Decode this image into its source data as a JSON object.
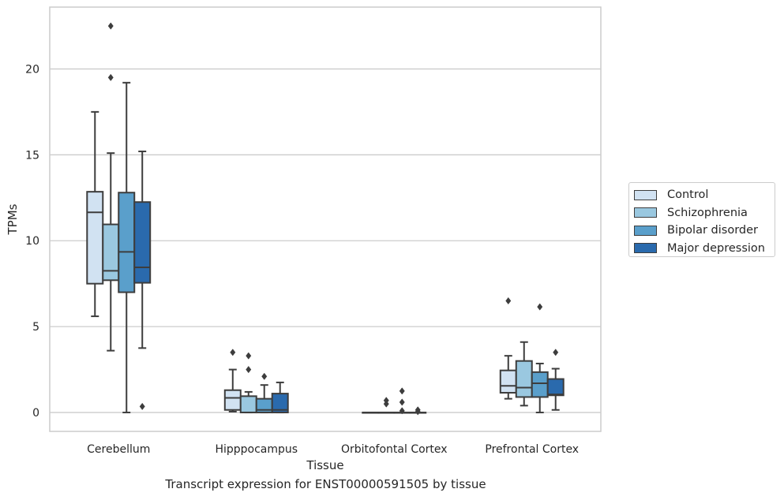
{
  "chart_data": {
    "type": "box",
    "title": "",
    "caption": "Transcript expression for ENST00000591505 by tissue",
    "xlabel": "Tissue",
    "ylabel": "TPMs",
    "ylim": [
      -1.1,
      23.6
    ],
    "yticks": [
      0,
      5,
      10,
      15,
      20
    ],
    "grid": "horizontal",
    "legend_position": "right",
    "categories": [
      "Cerebellum",
      "Hipppocampus",
      "Orbitofontal Cortex",
      "Prefrontal Cortex"
    ],
    "series": [
      {
        "name": "Control",
        "color": "#d1e2f2",
        "boxes": [
          {
            "whislo": 5.6,
            "q1": 7.5,
            "med": 11.65,
            "q3": 12.85,
            "whishi": 17.5,
            "fliers": []
          },
          {
            "whislo": 0.05,
            "q1": 0.15,
            "med": 0.85,
            "q3": 1.3,
            "whishi": 2.5,
            "fliers": [
              3.5
            ]
          },
          {
            "whislo": 0.0,
            "q1": 0.0,
            "med": 0.0,
            "q3": 0.0,
            "whishi": 0.0,
            "fliers": []
          },
          {
            "whislo": 0.8,
            "q1": 1.15,
            "med": 1.55,
            "q3": 2.45,
            "whishi": 3.3,
            "fliers": [
              6.5
            ]
          }
        ]
      },
      {
        "name": "Schizophrenia",
        "color": "#9ac8e0",
        "boxes": [
          {
            "whislo": 3.6,
            "q1": 7.7,
            "med": 8.25,
            "q3": 10.95,
            "whishi": 15.1,
            "fliers": [
              19.5,
              22.5
            ]
          },
          {
            "whislo": 0.0,
            "q1": 0.0,
            "med": 0.0,
            "q3": 0.95,
            "whishi": 1.2,
            "fliers": [
              2.5,
              3.3
            ]
          },
          {
            "whislo": 0.0,
            "q1": 0.0,
            "med": 0.0,
            "q3": 0.0,
            "whishi": 0.0,
            "fliers": [
              0.5,
              0.7
            ]
          },
          {
            "whislo": 0.4,
            "q1": 0.9,
            "med": 1.45,
            "q3": 3.0,
            "whishi": 4.1,
            "fliers": []
          }
        ]
      },
      {
        "name": "Bipolar disorder",
        "color": "#5a9fcb",
        "boxes": [
          {
            "whislo": 0.0,
            "q1": 7.0,
            "med": 9.35,
            "q3": 12.8,
            "whishi": 19.2,
            "fliers": []
          },
          {
            "whislo": 0.0,
            "q1": 0.0,
            "med": 0.15,
            "q3": 0.8,
            "whishi": 1.6,
            "fliers": [
              2.1
            ]
          },
          {
            "whislo": 0.0,
            "q1": 0.0,
            "med": 0.0,
            "q3": 0.0,
            "whishi": 0.0,
            "fliers": [
              0.1,
              0.6,
              1.25
            ]
          },
          {
            "whislo": 0.0,
            "q1": 0.9,
            "med": 1.7,
            "q3": 2.35,
            "whishi": 2.85,
            "fliers": [
              6.15
            ]
          }
        ]
      },
      {
        "name": "Major depression",
        "color": "#2a6aad",
        "boxes": [
          {
            "whislo": 3.75,
            "q1": 7.55,
            "med": 8.45,
            "q3": 12.25,
            "whishi": 15.2,
            "fliers": [
              0.35
            ]
          },
          {
            "whislo": 0.0,
            "q1": 0.0,
            "med": 0.15,
            "q3": 1.1,
            "whishi": 1.75,
            "fliers": []
          },
          {
            "whislo": 0.0,
            "q1": 0.0,
            "med": 0.0,
            "q3": 0.0,
            "whishi": 0.0,
            "fliers": [
              0.05,
              0.15
            ]
          },
          {
            "whislo": 0.15,
            "q1": 1.0,
            "med": 1.05,
            "q3": 1.95,
            "whishi": 2.55,
            "fliers": [
              3.5
            ]
          }
        ]
      }
    ]
  }
}
